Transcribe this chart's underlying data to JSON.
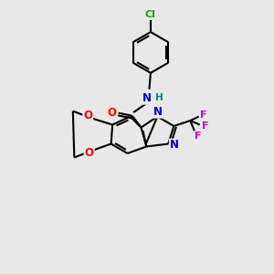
{
  "background_color": "#e8e8e8",
  "bond_color": "#000000",
  "atom_colors": {
    "N": "#0000cc",
    "O": "#ff0000",
    "F": "#cc00cc",
    "Cl": "#00aa00",
    "C": "#000000",
    "H": "#008080"
  },
  "figsize": [
    3.0,
    3.0
  ],
  "dpi": 100
}
